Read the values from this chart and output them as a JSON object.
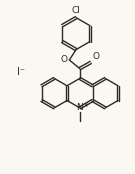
{
  "background_color": "#faf8f0",
  "line_color": "#2a2a2a",
  "line_width": 1.0,
  "text_color": "#2a2a2a",
  "fig_width": 1.35,
  "fig_height": 1.74,
  "dpi": 100,
  "xlim": [
    -0.5,
    10.5
  ],
  "ylim": [
    0.5,
    14.0
  ]
}
